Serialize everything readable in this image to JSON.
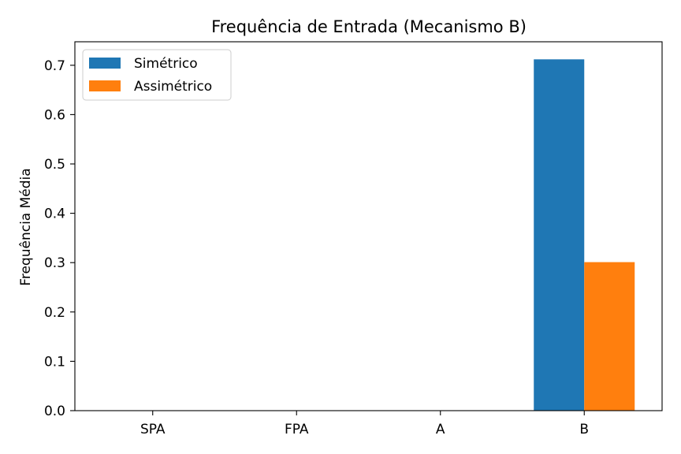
{
  "chart_data": {
    "type": "bar",
    "title": "Frequência de Entrada (Mecanismo B)",
    "xlabel": "",
    "ylabel": "Frequência Média",
    "categories": [
      "SPA",
      "FPA",
      "A",
      "B"
    ],
    "series": [
      {
        "name": "Simétrico",
        "color": "#1f77b4",
        "values": [
          0,
          0,
          0,
          0.712
        ]
      },
      {
        "name": "Assimétrico",
        "color": "#ff7f0e",
        "values": [
          0,
          0,
          0,
          0.301
        ]
      }
    ],
    "ylim": [
      0,
      0.7476
    ],
    "yticks": [
      0.0,
      0.1,
      0.2,
      0.3,
      0.4,
      0.5,
      0.6,
      0.7
    ],
    "ytick_labels": [
      "0.0",
      "0.1",
      "0.2",
      "0.3",
      "0.4",
      "0.5",
      "0.6",
      "0.7"
    ],
    "grid": false,
    "legend_position": "top-left"
  }
}
